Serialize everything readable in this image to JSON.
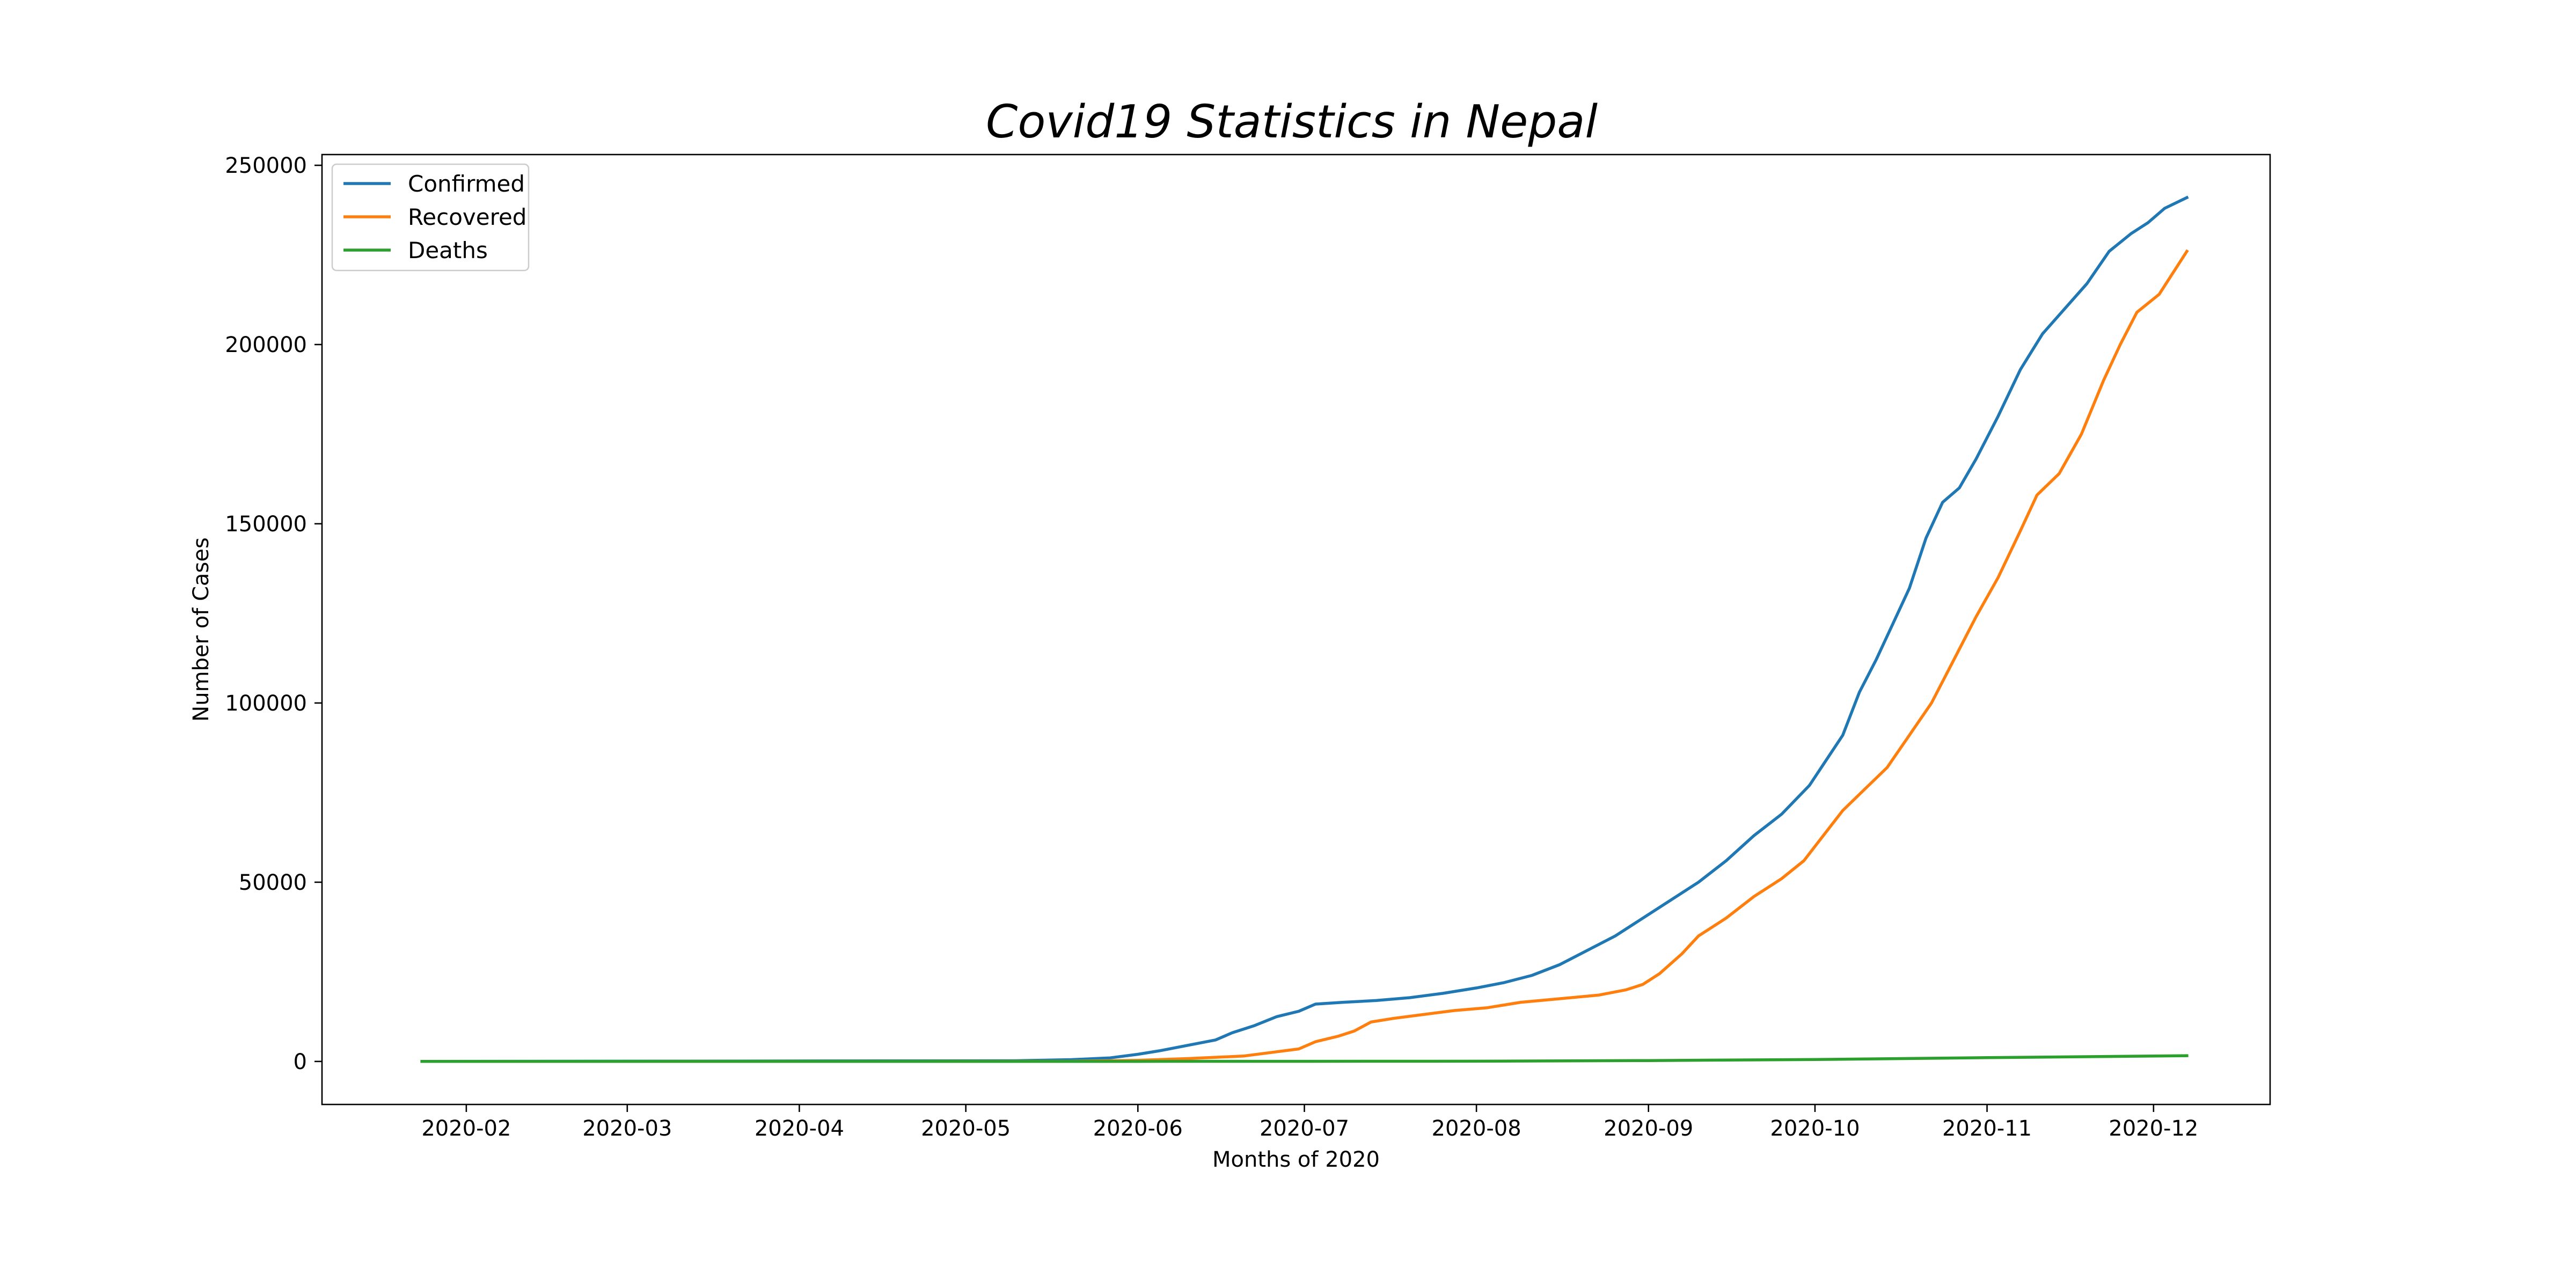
{
  "chart_data": {
    "type": "line",
    "title": "Covid19 Statistics in Nepal",
    "xlabel": "Months of 2020",
    "ylabel": "Number of Cases",
    "xlim": [
      "2020-01-06",
      "2020-12-22"
    ],
    "ylim": [
      -12000,
      253000
    ],
    "xticks": [
      "2020-02",
      "2020-03",
      "2020-04",
      "2020-05",
      "2020-06",
      "2020-07",
      "2020-08",
      "2020-09",
      "2020-10",
      "2020-11",
      "2020-12"
    ],
    "xtick_dates": [
      "2020-02-01",
      "2020-03-01",
      "2020-04-01",
      "2020-05-01",
      "2020-06-01",
      "2020-07-01",
      "2020-08-01",
      "2020-09-01",
      "2020-10-01",
      "2020-11-01",
      "2020-12-01"
    ],
    "yticks": [
      "0",
      "50000",
      "100000",
      "150000",
      "200000",
      "250000"
    ],
    "ytick_values": [
      0,
      50000,
      100000,
      150000,
      200000,
      250000
    ],
    "grid": false,
    "legend": "top-left",
    "series": [
      {
        "name": "Confirmed",
        "color": "#1f77b4",
        "points": [
          [
            "2020-01-24",
            0
          ],
          [
            "2020-05-10",
            200
          ],
          [
            "2020-05-20",
            500
          ],
          [
            "2020-05-27",
            1000
          ],
          [
            "2020-06-01",
            2000
          ],
          [
            "2020-06-05",
            3000
          ],
          [
            "2020-06-10",
            4500
          ],
          [
            "2020-06-15",
            6000
          ],
          [
            "2020-06-18",
            8000
          ],
          [
            "2020-06-22",
            10000
          ],
          [
            "2020-06-26",
            12500
          ],
          [
            "2020-06-30",
            14000
          ],
          [
            "2020-07-03",
            16000
          ],
          [
            "2020-07-08",
            16500
          ],
          [
            "2020-07-14",
            17000
          ],
          [
            "2020-07-20",
            17800
          ],
          [
            "2020-07-26",
            19000
          ],
          [
            "2020-08-01",
            20500
          ],
          [
            "2020-08-06",
            22000
          ],
          [
            "2020-08-11",
            24000
          ],
          [
            "2020-08-16",
            27000
          ],
          [
            "2020-08-21",
            31000
          ],
          [
            "2020-08-26",
            35000
          ],
          [
            "2020-08-31",
            40000
          ],
          [
            "2020-09-05",
            45000
          ],
          [
            "2020-09-10",
            50000
          ],
          [
            "2020-09-15",
            56000
          ],
          [
            "2020-09-20",
            63000
          ],
          [
            "2020-09-25",
            69000
          ],
          [
            "2020-09-30",
            77000
          ],
          [
            "2020-10-03",
            84000
          ],
          [
            "2020-10-06",
            91000
          ],
          [
            "2020-10-09",
            103000
          ],
          [
            "2020-10-12",
            112000
          ],
          [
            "2020-10-15",
            122000
          ],
          [
            "2020-10-18",
            132000
          ],
          [
            "2020-10-21",
            146000
          ],
          [
            "2020-10-24",
            156000
          ],
          [
            "2020-10-27",
            160000
          ],
          [
            "2020-10-30",
            168000
          ],
          [
            "2020-11-03",
            180000
          ],
          [
            "2020-11-07",
            193000
          ],
          [
            "2020-11-11",
            203000
          ],
          [
            "2020-11-15",
            210000
          ],
          [
            "2020-11-19",
            217000
          ],
          [
            "2020-11-23",
            226000
          ],
          [
            "2020-11-27",
            231000
          ],
          [
            "2020-11-30",
            234000
          ],
          [
            "2020-12-03",
            238000
          ],
          [
            "2020-12-07",
            241000
          ]
        ]
      },
      {
        "name": "Recovered",
        "color": "#ff7f0e",
        "points": [
          [
            "2020-01-24",
            0
          ],
          [
            "2020-05-20",
            50
          ],
          [
            "2020-06-01",
            300
          ],
          [
            "2020-06-10",
            800
          ],
          [
            "2020-06-20",
            1500
          ],
          [
            "2020-06-25",
            2500
          ],
          [
            "2020-06-30",
            3500
          ],
          [
            "2020-07-03",
            5500
          ],
          [
            "2020-07-07",
            7000
          ],
          [
            "2020-07-10",
            8500
          ],
          [
            "2020-07-13",
            11000
          ],
          [
            "2020-07-17",
            12000
          ],
          [
            "2020-07-22",
            13000
          ],
          [
            "2020-07-28",
            14200
          ],
          [
            "2020-08-03",
            15000
          ],
          [
            "2020-08-09",
            16500
          ],
          [
            "2020-08-16",
            17500
          ],
          [
            "2020-08-23",
            18500
          ],
          [
            "2020-08-28",
            20000
          ],
          [
            "2020-08-31",
            21500
          ],
          [
            "2020-09-03",
            24500
          ],
          [
            "2020-09-07",
            30000
          ],
          [
            "2020-09-10",
            35000
          ],
          [
            "2020-09-15",
            40000
          ],
          [
            "2020-09-20",
            46000
          ],
          [
            "2020-09-25",
            51000
          ],
          [
            "2020-09-29",
            56000
          ],
          [
            "2020-10-02",
            62000
          ],
          [
            "2020-10-06",
            70000
          ],
          [
            "2020-10-10",
            76000
          ],
          [
            "2020-10-14",
            82000
          ],
          [
            "2020-10-18",
            91000
          ],
          [
            "2020-10-22",
            100000
          ],
          [
            "2020-10-26",
            112000
          ],
          [
            "2020-10-30",
            124000
          ],
          [
            "2020-11-03",
            135000
          ],
          [
            "2020-11-07",
            148000
          ],
          [
            "2020-11-10",
            158000
          ],
          [
            "2020-11-14",
            164000
          ],
          [
            "2020-11-18",
            175000
          ],
          [
            "2020-11-22",
            190000
          ],
          [
            "2020-11-25",
            200000
          ],
          [
            "2020-11-28",
            209000
          ],
          [
            "2020-12-02",
            214000
          ],
          [
            "2020-12-07",
            226000
          ]
        ]
      },
      {
        "name": "Deaths",
        "color": "#2ca02c",
        "points": [
          [
            "2020-01-24",
            0
          ],
          [
            "2020-06-01",
            20
          ],
          [
            "2020-07-01",
            40
          ],
          [
            "2020-08-01",
            70
          ],
          [
            "2020-09-01",
            240
          ],
          [
            "2020-10-01",
            550
          ],
          [
            "2020-11-01",
            1050
          ],
          [
            "2020-12-07",
            1600
          ]
        ]
      }
    ]
  }
}
